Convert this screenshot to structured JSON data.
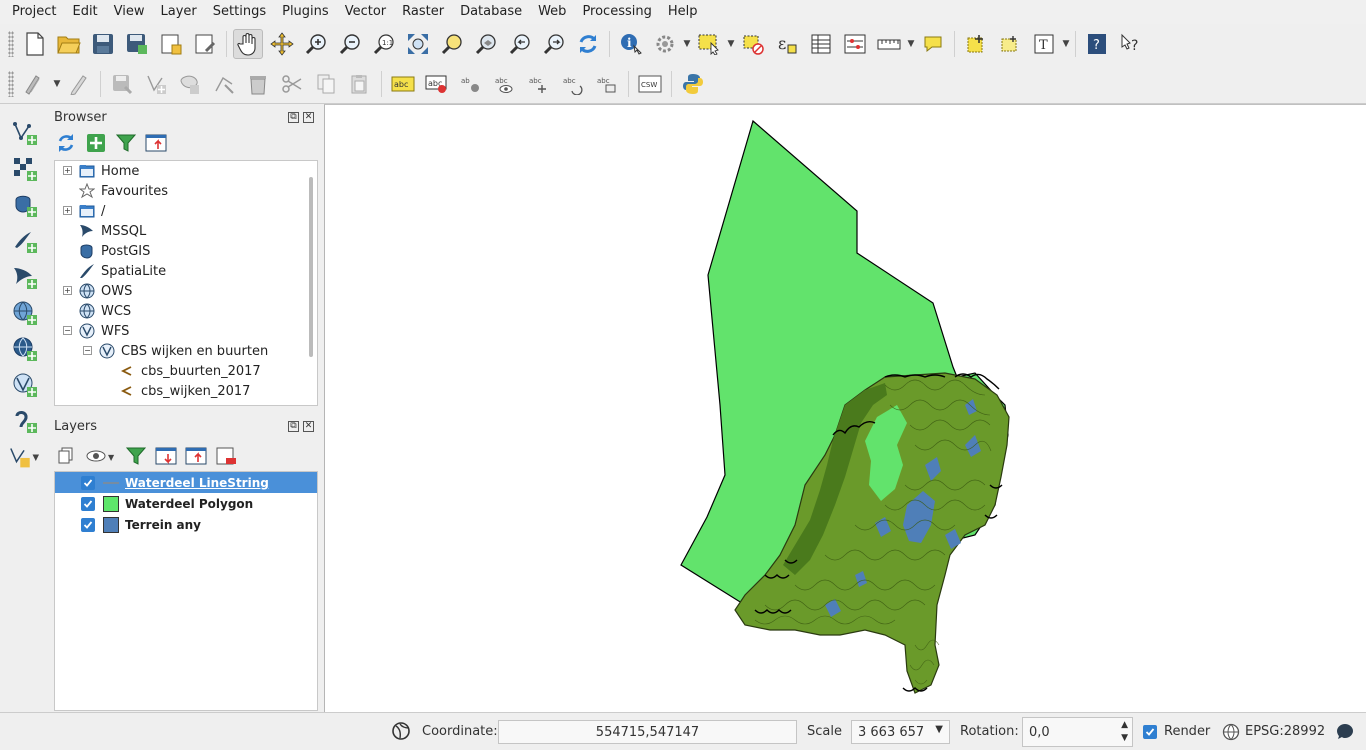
{
  "menu": [
    {
      "label": "Project",
      "name": "menu-project"
    },
    {
      "label": "Edit",
      "name": "menu-edit"
    },
    {
      "label": "View",
      "name": "menu-view"
    },
    {
      "label": "Layer",
      "name": "menu-layer"
    },
    {
      "label": "Settings",
      "name": "menu-settings"
    },
    {
      "label": "Plugins",
      "name": "menu-plugins"
    },
    {
      "label": "Vector",
      "name": "menu-vector"
    },
    {
      "label": "Raster",
      "name": "menu-raster"
    },
    {
      "label": "Database",
      "name": "menu-database"
    },
    {
      "label": "Web",
      "name": "menu-web"
    },
    {
      "label": "Processing",
      "name": "menu-processing"
    },
    {
      "label": "Help",
      "name": "menu-help"
    }
  ],
  "browser": {
    "title": "Browser",
    "items": [
      {
        "label": "Home",
        "icon": "folder-icon"
      },
      {
        "label": "Favourites",
        "icon": "star-icon"
      },
      {
        "label": "/",
        "icon": "folder-icon"
      },
      {
        "label": "MSSQL",
        "icon": "mssql-icon"
      },
      {
        "label": "PostGIS",
        "icon": "postgis-icon"
      },
      {
        "label": "SpatiaLite",
        "icon": "spatialite-icon"
      },
      {
        "label": "OWS",
        "icon": "globe-icon"
      },
      {
        "label": "WCS",
        "icon": "globe-icon"
      },
      {
        "label": "WFS",
        "icon": "wfs-icon"
      },
      {
        "label": "CBS wijken en buurten",
        "icon": "wfs-icon"
      },
      {
        "label": "cbs_buurten_2017",
        "icon": "line-layer-icon"
      },
      {
        "label": "cbs_wijken_2017",
        "icon": "line-layer-icon"
      }
    ]
  },
  "layers": {
    "title": "Layers",
    "items": [
      {
        "label": "Waterdeel LineString",
        "checked": true,
        "symbol": "line",
        "color": "#8a8a8a"
      },
      {
        "label": "Waterdeel Polygon",
        "checked": true,
        "symbol": "fill",
        "color": "#5ee66b"
      },
      {
        "label": "Terrein any",
        "checked": true,
        "symbol": "fill",
        "color": "#4f7fb8"
      }
    ]
  },
  "colors": {
    "sea_polygon": "#62e36c",
    "terrain": "#6a9a2a",
    "terrain_dark": "#4a7a1c",
    "water_blue": "#4f7fb8",
    "selection": "#4a90d9"
  },
  "status": {
    "coordinate_label": "Coordinate:",
    "coordinate_value": "554715,547147",
    "scale_label": "Scale",
    "scale_value": "3 663 657",
    "rotation_label": "Rotation:",
    "rotation_value": "0,0",
    "render_label": "Render",
    "crs_label": "EPSG:28992"
  }
}
